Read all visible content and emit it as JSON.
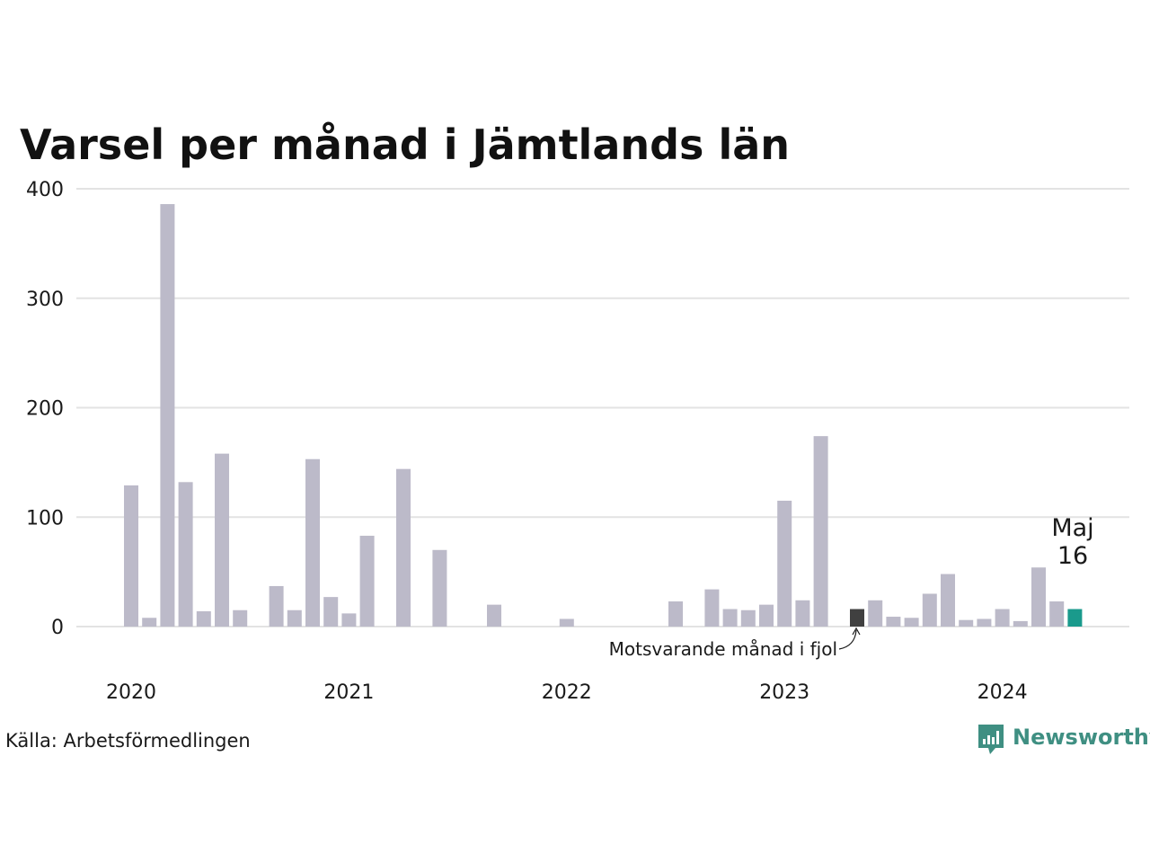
{
  "title": "Varsel per månad i Jämtlands län",
  "source": "Källa: Arbetsförmedlingen",
  "brand": {
    "name": "Newsworthy",
    "icon": "newsworthy-logo-icon",
    "color": "#3f8f82"
  },
  "annotation": {
    "text": "Motsvarande månad i fjol",
    "index": 40
  },
  "highlight": {
    "month": "Maj",
    "value": "16",
    "index": 52
  },
  "colors": {
    "bar": "#bcbac9",
    "previous_year": "#404040",
    "current": "#1a9a8c",
    "grid": "#e3e3e3"
  },
  "chart_data": {
    "type": "bar",
    "title": "Varsel per månad i Jämtlands län",
    "xlabel": "",
    "ylabel": "",
    "ylim": [
      0,
      400
    ],
    "yticks": [
      "0",
      "100",
      "200",
      "300",
      "400"
    ],
    "ytick_values": [
      0,
      100,
      200,
      300,
      400
    ],
    "xticks": [
      {
        "label": "2020",
        "index": 0
      },
      {
        "label": "2021",
        "index": 12
      },
      {
        "label": "2022",
        "index": 24
      },
      {
        "label": "2023",
        "index": 36
      },
      {
        "label": "2024",
        "index": 48
      }
    ],
    "grid": true,
    "legend": "none",
    "categories": [
      "2020-01",
      "2020-02",
      "2020-03",
      "2020-04",
      "2020-05",
      "2020-06",
      "2020-07",
      "2020-08",
      "2020-09",
      "2020-10",
      "2020-11",
      "2020-12",
      "2021-01",
      "2021-02",
      "2021-03",
      "2021-04",
      "2021-05",
      "2021-06",
      "2021-07",
      "2021-08",
      "2021-09",
      "2021-10",
      "2021-11",
      "2021-12",
      "2022-01",
      "2022-02",
      "2022-03",
      "2022-04",
      "2022-05",
      "2022-06",
      "2022-07",
      "2022-08",
      "2022-09",
      "2022-10",
      "2022-11",
      "2022-12",
      "2023-01",
      "2023-02",
      "2023-03",
      "2023-04",
      "2023-05",
      "2023-06",
      "2023-07",
      "2023-08",
      "2023-09",
      "2023-10",
      "2023-11",
      "2023-12",
      "2024-01",
      "2024-02",
      "2024-03",
      "2024-04",
      "2024-05"
    ],
    "values": [
      129,
      8,
      386,
      132,
      14,
      158,
      15,
      0,
      37,
      15,
      153,
      27,
      12,
      83,
      0,
      144,
      0,
      70,
      0,
      0,
      20,
      0,
      0,
      0,
      7,
      0,
      0,
      0,
      0,
      0,
      23,
      0,
      34,
      16,
      15,
      20,
      115,
      24,
      174,
      0,
      16,
      24,
      9,
      8,
      30,
      48,
      6,
      7,
      16,
      5,
      54,
      23,
      16
    ]
  }
}
